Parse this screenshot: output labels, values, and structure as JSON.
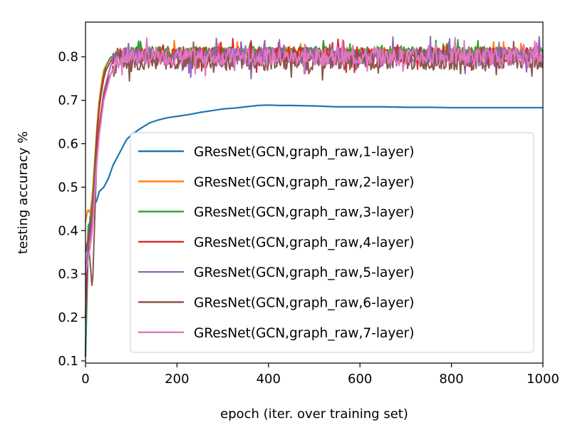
{
  "chart_data": {
    "type": "line",
    "xlabel": "epoch (iter. over training set)",
    "ylabel": "testing accuracy %",
    "xlim": [
      0,
      1000
    ],
    "ylim": [
      0.095,
      0.88
    ],
    "xticks": [
      0,
      200,
      400,
      600,
      800,
      1000
    ],
    "yticks": [
      0.1,
      0.2,
      0.3,
      0.4,
      0.5,
      0.6,
      0.7,
      0.8
    ],
    "xtick_labels": [
      "0",
      "200",
      "400",
      "600",
      "800",
      "1000"
    ],
    "ytick_labels": [
      "0.1",
      "0.2",
      "0.3",
      "0.4",
      "0.5",
      "0.6",
      "0.7",
      "0.8"
    ],
    "grid": false,
    "legend_position": "lower-right",
    "series": [
      {
        "name": "GResNet(GCN,graph_raw,1-layer)",
        "color": "#1f77b4",
        "x": [
          0,
          5,
          10,
          15,
          20,
          25,
          30,
          40,
          50,
          60,
          70,
          80,
          90,
          100,
          120,
          140,
          160,
          180,
          200,
          225,
          250,
          275,
          300,
          325,
          350,
          375,
          400,
          425,
          450,
          500,
          550,
          600,
          650,
          700,
          750,
          800,
          850,
          900,
          950,
          1000
        ],
        "y": [
          0.11,
          0.33,
          0.43,
          0.45,
          0.46,
          0.47,
          0.49,
          0.5,
          0.52,
          0.55,
          0.57,
          0.59,
          0.61,
          0.62,
          0.635,
          0.648,
          0.655,
          0.66,
          0.663,
          0.667,
          0.672,
          0.676,
          0.68,
          0.682,
          0.685,
          0.688,
          0.689,
          0.688,
          0.688,
          0.687,
          0.685,
          0.685,
          0.685,
          0.684,
          0.684,
          0.683,
          0.683,
          0.683,
          0.683,
          0.683
        ]
      },
      {
        "name": "GResNet(GCN,graph_raw,2-layer)",
        "color": "#ff7f0e",
        "x": [
          0,
          5,
          10,
          15,
          20,
          25,
          30,
          35,
          40,
          45,
          50,
          55,
          60,
          65,
          70,
          75,
          80,
          90,
          100,
          1000
        ],
        "y": [
          0.42,
          0.45,
          0.44,
          0.48,
          0.56,
          0.64,
          0.7,
          0.74,
          0.77,
          0.78,
          0.79,
          0.8,
          0.8,
          0.81,
          0.81,
          0.81,
          0.81,
          0.81,
          0.81,
          0.81
        ],
        "noise": 0.012,
        "noise_from": 60,
        "seed": 2
      },
      {
        "name": "GResNet(GCN,graph_raw,3-layer)",
        "color": "#2ca02c",
        "x": [
          0,
          5,
          10,
          15,
          20,
          25,
          30,
          35,
          40,
          45,
          50,
          55,
          60,
          65,
          70,
          75,
          80,
          90,
          100,
          1000
        ],
        "y": [
          0.12,
          0.41,
          0.42,
          0.46,
          0.55,
          0.63,
          0.69,
          0.73,
          0.76,
          0.78,
          0.79,
          0.8,
          0.8,
          0.81,
          0.81,
          0.812,
          0.812,
          0.812,
          0.812,
          0.812
        ],
        "noise": 0.012,
        "noise_from": 60,
        "seed": 3
      },
      {
        "name": "GResNet(GCN,graph_raw,4-layer)",
        "color": "#d62728",
        "x": [
          0,
          5,
          10,
          15,
          20,
          25,
          30,
          35,
          40,
          45,
          50,
          55,
          60,
          65,
          70,
          75,
          80,
          90,
          100,
          1000
        ],
        "y": [
          0.2,
          0.38,
          0.4,
          0.44,
          0.52,
          0.62,
          0.68,
          0.72,
          0.75,
          0.77,
          0.78,
          0.79,
          0.8,
          0.8,
          0.8,
          0.805,
          0.805,
          0.805,
          0.805,
          0.805
        ],
        "noise": 0.018,
        "noise_from": 60,
        "seed": 4
      },
      {
        "name": "GResNet(GCN,graph_raw,5-layer)",
        "color": "#9467bd",
        "x": [
          0,
          5,
          10,
          15,
          20,
          25,
          30,
          35,
          40,
          45,
          50,
          55,
          60,
          65,
          70,
          75,
          80,
          90,
          100,
          1000
        ],
        "y": [
          0.3,
          0.36,
          0.38,
          0.42,
          0.5,
          0.58,
          0.64,
          0.68,
          0.72,
          0.74,
          0.76,
          0.78,
          0.79,
          0.8,
          0.8,
          0.8,
          0.8,
          0.8,
          0.8,
          0.8
        ],
        "noise": 0.022,
        "noise_from": 60,
        "seed": 5
      },
      {
        "name": "GResNet(GCN,graph_raw,6-layer)",
        "color": "#8c564b",
        "x": [
          0,
          5,
          10,
          15,
          20,
          25,
          30,
          35,
          40,
          45,
          50,
          55,
          60,
          65,
          70,
          75,
          80,
          90,
          100,
          1000
        ],
        "y": [
          0.35,
          0.38,
          0.33,
          0.26,
          0.42,
          0.58,
          0.64,
          0.68,
          0.71,
          0.73,
          0.75,
          0.76,
          0.77,
          0.78,
          0.79,
          0.79,
          0.79,
          0.79,
          0.79,
          0.79
        ],
        "noise": 0.02,
        "noise_from": 60,
        "seed": 6
      },
      {
        "name": "GResNet(GCN,graph_raw,7-layer)",
        "color": "#e377c2",
        "x": [
          0,
          5,
          10,
          15,
          20,
          25,
          30,
          35,
          40,
          45,
          50,
          55,
          60,
          65,
          70,
          75,
          80,
          90,
          100,
          1000
        ],
        "y": [
          0.3,
          0.33,
          0.36,
          0.4,
          0.48,
          0.56,
          0.62,
          0.66,
          0.7,
          0.72,
          0.74,
          0.76,
          0.77,
          0.78,
          0.79,
          0.795,
          0.8,
          0.8,
          0.8,
          0.8
        ],
        "noise": 0.02,
        "noise_from": 60,
        "seed": 7
      }
    ]
  }
}
